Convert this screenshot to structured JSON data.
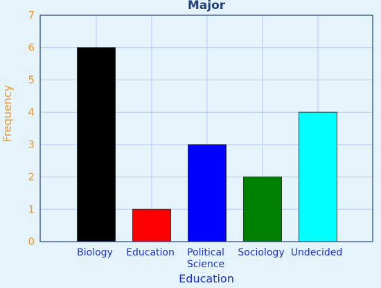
{
  "chart_data": {
    "type": "bar",
    "title": "Major",
    "xlabel": "Education",
    "ylabel": "Frequency",
    "categories": [
      "Biology",
      "Education",
      "Political Science",
      "Sociology",
      "Undecided"
    ],
    "category_lines": [
      [
        "Biology"
      ],
      [
        "Education"
      ],
      [
        "Political",
        "Science"
      ],
      [
        "Sociology"
      ],
      [
        "Undecided"
      ]
    ],
    "values": [
      6,
      1,
      3,
      2,
      4
    ],
    "bar_colors": [
      "#000000",
      "#ff0000",
      "#0000ff",
      "#008000",
      "#00ffff"
    ],
    "ylim": [
      0,
      7
    ],
    "yticks": [
      0,
      1,
      2,
      3,
      4,
      5,
      6,
      7
    ],
    "grid": true
  },
  "colors": {
    "background": "#e5f4fb",
    "plot_background": "#e5f4fb",
    "grid": "#b6c8f2",
    "axis": "#1f3f7a",
    "title": "#1f3f7a",
    "y_text": "#f0962a",
    "x_text": "#1b2fc8"
  }
}
